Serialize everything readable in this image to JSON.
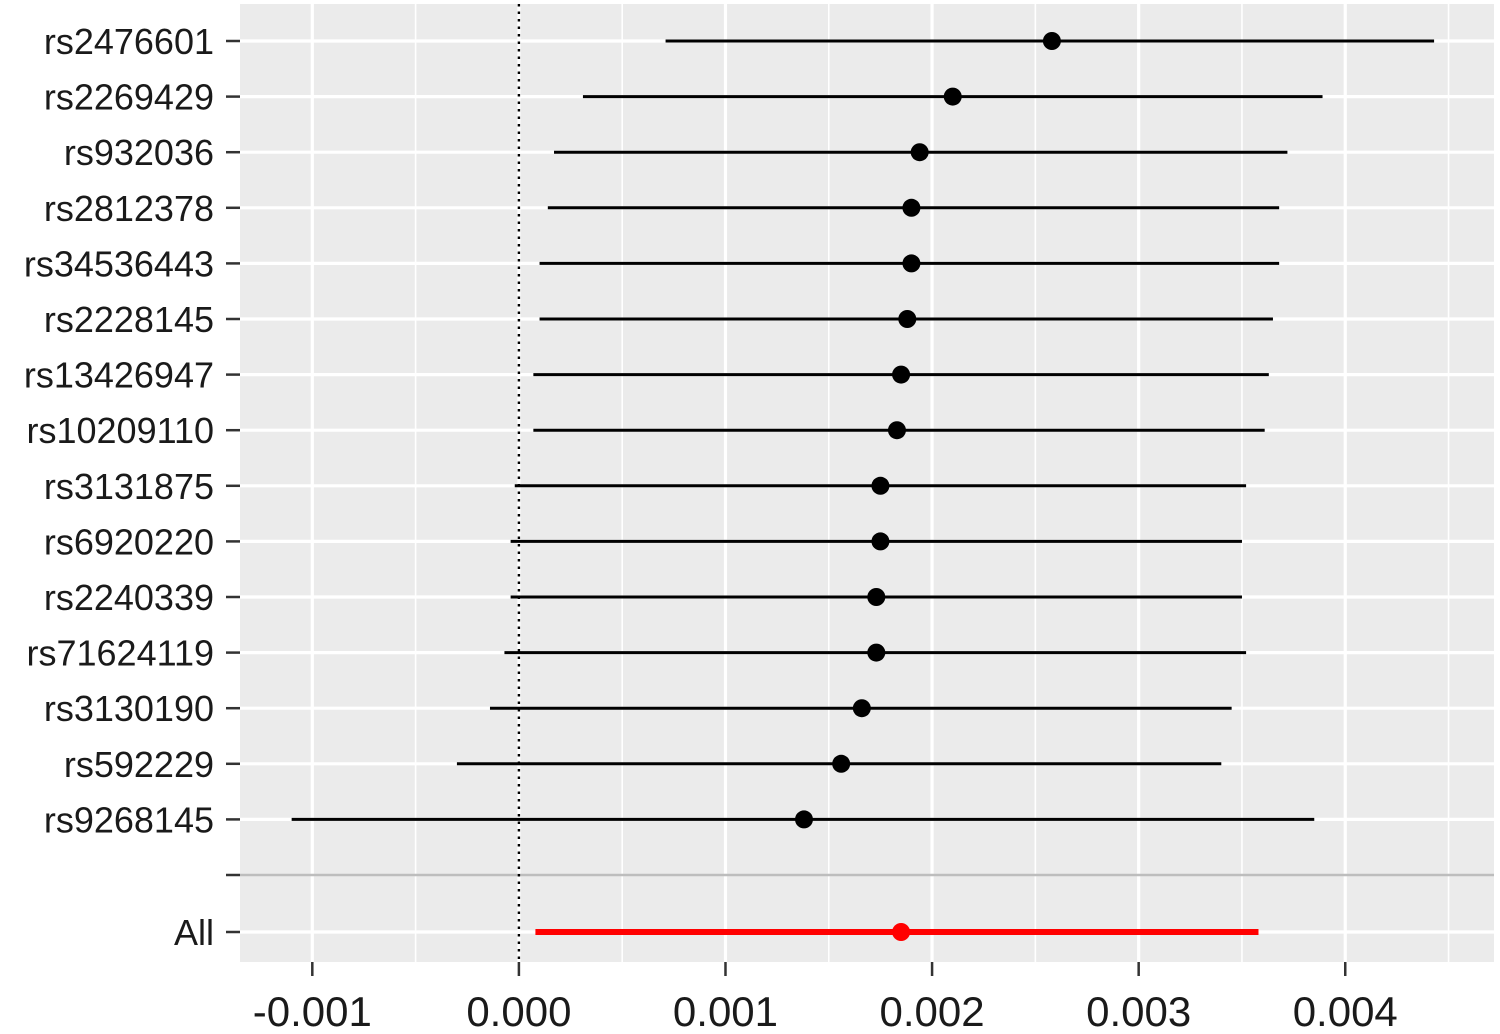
{
  "chart_data": {
    "type": "forest",
    "title": "",
    "xlabel": "",
    "ylabel": "",
    "xlim": [
      -0.00135,
      0.00472
    ],
    "x_ticks": [
      -0.001,
      0.0,
      0.001,
      0.002,
      0.003,
      0.004
    ],
    "x_tick_labels": [
      "-0.001",
      "0.000",
      "0.001",
      "0.002",
      "0.003",
      "0.004"
    ],
    "reference_line": 0.0,
    "grid": true,
    "legend": "none",
    "colors": {
      "panel": "#ebebeb",
      "grid": "#ffffff",
      "point": "#000000",
      "combined": "#ff0000",
      "separator": "#bdbdbd"
    },
    "rows": [
      {
        "label": "rs2476601",
        "estimate": 0.00258,
        "lower": 0.00071,
        "upper": 0.00443
      },
      {
        "label": "rs2269429",
        "estimate": 0.0021,
        "lower": 0.00031,
        "upper": 0.00389
      },
      {
        "label": "rs932036",
        "estimate": 0.00194,
        "lower": 0.00017,
        "upper": 0.00372
      },
      {
        "label": "rs2812378",
        "estimate": 0.0019,
        "lower": 0.00014,
        "upper": 0.00368
      },
      {
        "label": "rs34536443",
        "estimate": 0.0019,
        "lower": 0.0001,
        "upper": 0.00368
      },
      {
        "label": "rs2228145",
        "estimate": 0.00188,
        "lower": 0.0001,
        "upper": 0.00365
      },
      {
        "label": "rs13426947",
        "estimate": 0.00185,
        "lower": 7e-05,
        "upper": 0.00363
      },
      {
        "label": "rs10209110",
        "estimate": 0.00183,
        "lower": 7e-05,
        "upper": 0.00361
      },
      {
        "label": "rs3131875",
        "estimate": 0.00175,
        "lower": -2e-05,
        "upper": 0.00352
      },
      {
        "label": "rs6920220",
        "estimate": 0.00175,
        "lower": -4e-05,
        "upper": 0.0035
      },
      {
        "label": "rs2240339",
        "estimate": 0.00173,
        "lower": -4e-05,
        "upper": 0.0035
      },
      {
        "label": "rs71624119",
        "estimate": 0.00173,
        "lower": -7e-05,
        "upper": 0.00352
      },
      {
        "label": "rs3130190",
        "estimate": 0.00166,
        "lower": -0.00014,
        "upper": 0.00345
      },
      {
        "label": "rs592229",
        "estimate": 0.00156,
        "lower": -0.0003,
        "upper": 0.0034
      },
      {
        "label": "rs9268145",
        "estimate": 0.00138,
        "lower": -0.0011,
        "upper": 0.00385
      }
    ],
    "combined": {
      "label": "All",
      "estimate": 0.00185,
      "lower": 8e-05,
      "upper": 0.00358
    }
  }
}
